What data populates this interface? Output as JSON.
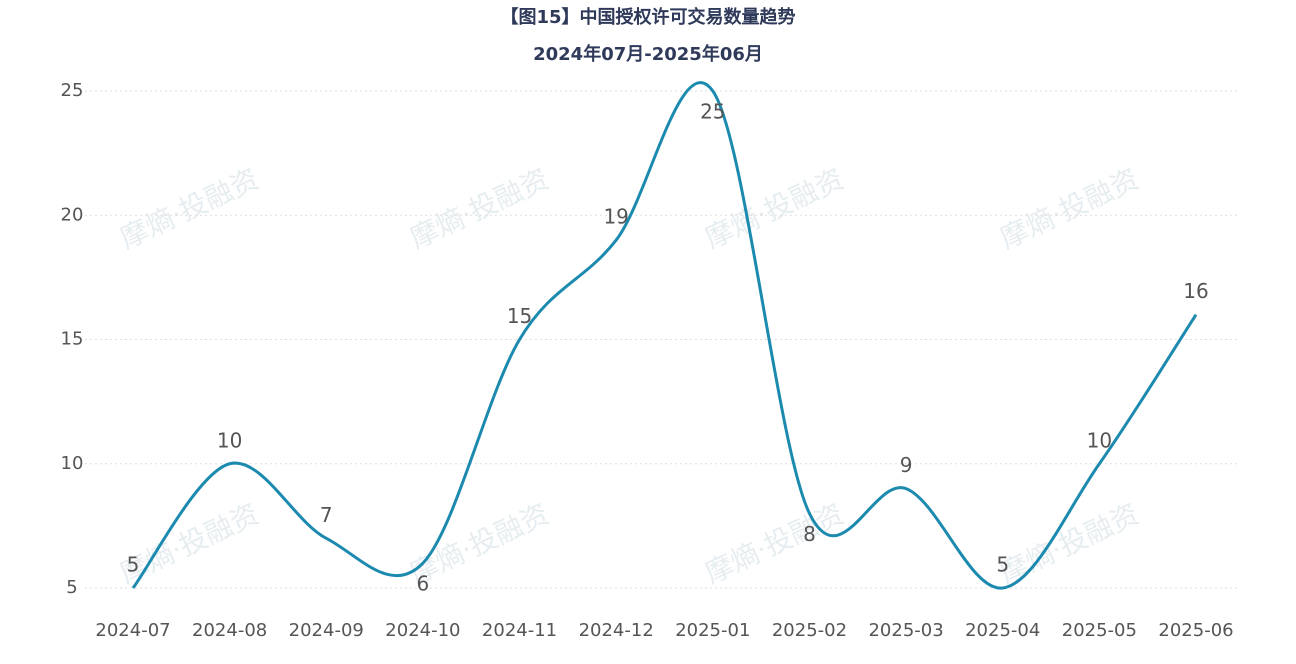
{
  "chart_data": {
    "type": "line",
    "title": "【图15】中国授权许可交易数量趋势",
    "subtitle": "2024年07月-2025年06月",
    "watermark": "摩熵·投融资",
    "categories": [
      "2024-07",
      "2024-08",
      "2024-09",
      "2024-10",
      "2024-11",
      "2024-12",
      "2025-01",
      "2025-02",
      "2025-03",
      "2025-04",
      "2025-05",
      "2025-06"
    ],
    "values": [
      5,
      10,
      7,
      6,
      15,
      19,
      25,
      8,
      9,
      5,
      10,
      16
    ],
    "color": "#1c8aaf",
    "ylim": [
      5,
      25
    ],
    "yticks": [
      5,
      10,
      15,
      20,
      25
    ],
    "grid": true,
    "smooth": true
  }
}
